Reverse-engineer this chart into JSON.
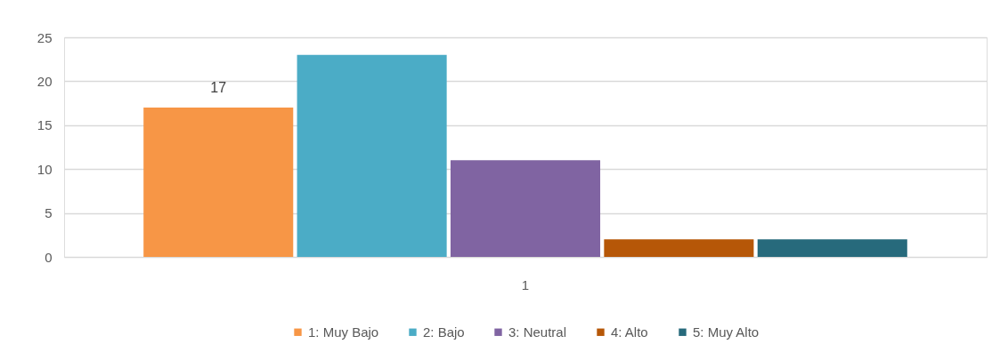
{
  "chart_data": {
    "type": "bar",
    "categories": [
      "1"
    ],
    "series": [
      {
        "name": "1: Muy Bajo",
        "color": "#f79646",
        "values": [
          17
        ],
        "value_labels": [
          "17"
        ]
      },
      {
        "name": "2: Bajo",
        "color": "#4bacc6",
        "values": [
          23
        ]
      },
      {
        "name": "3: Neutral",
        "color": "#8064a2",
        "values": [
          11
        ]
      },
      {
        "name": "4: Alto",
        "color": "#b65708",
        "values": [
          2
        ]
      },
      {
        "name": "5: Muy Alto",
        "color": "#276a7c",
        "values": [
          2
        ]
      }
    ],
    "ylim": [
      0,
      25
    ],
    "yticks": [
      0,
      5,
      10,
      15,
      20,
      25
    ],
    "grid": "y",
    "legend": "bottom"
  }
}
